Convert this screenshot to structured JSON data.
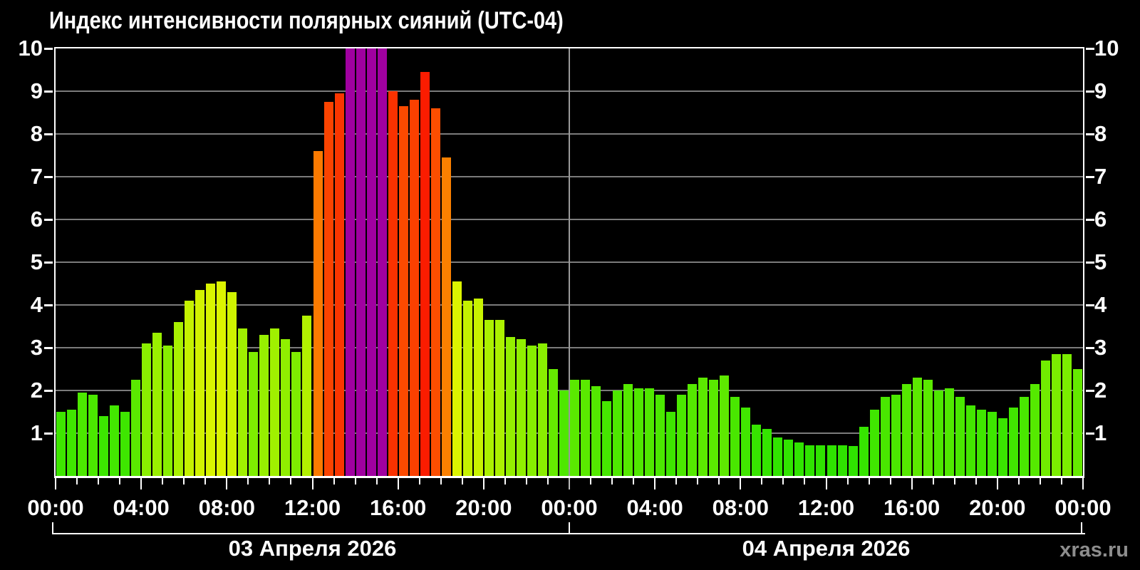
{
  "title": "Индекс интенсивности полярных сияний (UTC-04)",
  "watermark": "xras.ru",
  "chart_data": {
    "type": "bar",
    "title": "Индекс интенсивности полярных сияний (UTC-04)",
    "timezone": "UTC-04",
    "interval_minutes": 30,
    "hours_span": 48,
    "ylim": [
      0,
      10
    ],
    "y_tick_labels": [
      "1",
      "2",
      "3",
      "4",
      "5",
      "6",
      "7",
      "8",
      "9",
      "10"
    ],
    "x_tick_major_every_hours": 4,
    "x_tick_minor_every_hours": 1,
    "x_tick_labels": [
      "00:00",
      "04:00",
      "08:00",
      "12:00",
      "16:00",
      "20:00",
      "00:00",
      "04:00",
      "08:00",
      "12:00",
      "16:00",
      "20:00",
      "00:00"
    ],
    "day_labels": [
      {
        "label": "03 Апреля 2026",
        "start_hour": 0,
        "end_hour": 24
      },
      {
        "label": "04 Апреля 2026",
        "start_hour": 24,
        "end_hour": 48
      }
    ],
    "values": [
      1.5,
      1.55,
      1.95,
      1.9,
      1.4,
      1.65,
      1.5,
      2.25,
      3.1,
      3.35,
      3.05,
      3.6,
      4.1,
      4.35,
      4.5,
      4.55,
      4.3,
      3.45,
      2.9,
      3.3,
      3.45,
      3.2,
      2.9,
      3.75,
      7.6,
      8.75,
      8.95,
      10,
      10,
      10,
      10,
      9.0,
      8.65,
      8.8,
      9.45,
      8.6,
      7.45,
      4.55,
      4.1,
      4.15,
      3.65,
      3.65,
      3.25,
      3.2,
      3.05,
      3.1,
      2.5,
      2.0,
      2.25,
      2.25,
      2.1,
      1.75,
      2.0,
      2.15,
      2.05,
      2.05,
      1.9,
      1.5,
      1.9,
      2.15,
      2.3,
      2.25,
      2.35,
      1.85,
      1.6,
      1.2,
      1.1,
      0.9,
      0.85,
      0.78,
      0.72,
      0.72,
      0.71,
      0.71,
      0.7,
      1.15,
      1.55,
      1.85,
      1.9,
      2.15,
      2.3,
      2.25,
      2.0,
      2.05,
      1.85,
      1.65,
      1.55,
      1.5,
      1.35,
      1.6,
      1.85,
      2.15,
      2.7,
      2.85,
      2.85,
      2.5
    ],
    "grid": true,
    "legend": false,
    "colors": {
      "background": "#000000",
      "axis": "#ffffff",
      "grid": "#7b7b7b",
      "day_separator": "#999999",
      "text": "#ffffff",
      "watermark_text": "#8d8d8d",
      "value_10_purple": "#a000a0",
      "scale_stops": [
        [
          0,
          "#28e200"
        ],
        [
          1,
          "#32e400"
        ],
        [
          1.5,
          "#3ee600"
        ],
        [
          2,
          "#4ee800"
        ],
        [
          2.5,
          "#65ea00"
        ],
        [
          3,
          "#84ee00"
        ],
        [
          3.5,
          "#a3f000"
        ],
        [
          4,
          "#c0f200"
        ],
        [
          4.6,
          "#def400"
        ],
        [
          5,
          "#e9f200"
        ],
        [
          7,
          "#fb9200"
        ],
        [
          7.6,
          "#fb7a00"
        ],
        [
          8.6,
          "#fc4e00"
        ],
        [
          9,
          "#fa3200"
        ],
        [
          9.5,
          "#fb1a00"
        ],
        [
          10,
          "#f81400"
        ]
      ]
    }
  }
}
